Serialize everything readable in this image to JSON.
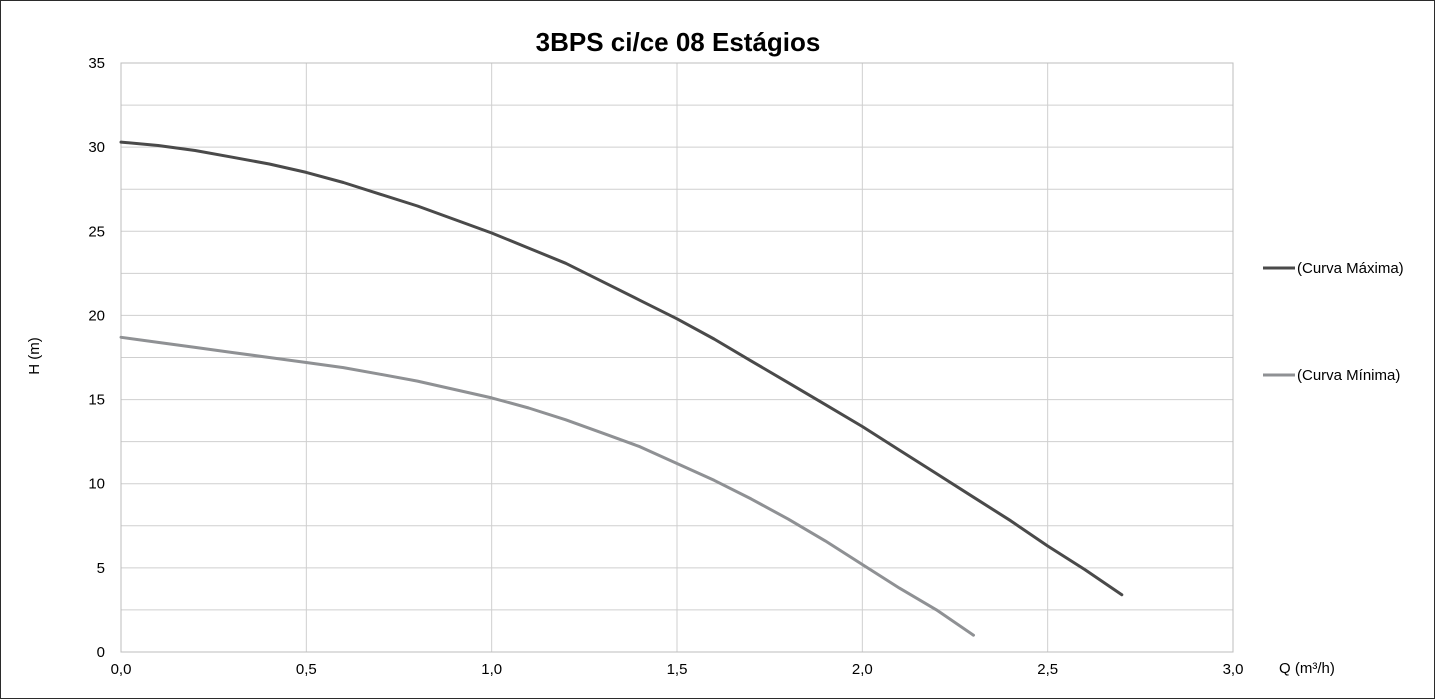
{
  "chart_data": {
    "type": "line",
    "title": "3BPS ci/ce 08 Estágios",
    "xlabel": "Q (m³/h)",
    "ylabel": "H (m)",
    "xlim": [
      0,
      3
    ],
    "ylim": [
      0,
      35
    ],
    "x_ticks": [
      "0,0",
      "0,5",
      "1,0",
      "1,5",
      "2,0",
      "2,5",
      "3,0"
    ],
    "y_ticks": [
      "0",
      "5",
      "10",
      "15",
      "20",
      "25",
      "30",
      "35"
    ],
    "grid": true,
    "legend_position": "right",
    "series": [
      {
        "name": "(Curva Máxima)",
        "color": "#4a4a4a",
        "x": [
          0.0,
          0.1,
          0.2,
          0.3,
          0.4,
          0.5,
          0.6,
          0.7,
          0.8,
          0.9,
          1.0,
          1.1,
          1.2,
          1.3,
          1.4,
          1.5,
          1.6,
          1.7,
          1.8,
          1.9,
          2.0,
          2.1,
          2.2,
          2.3,
          2.4,
          2.5,
          2.6,
          2.7
        ],
        "y": [
          30.3,
          30.1,
          29.8,
          29.4,
          29.0,
          28.5,
          27.9,
          27.2,
          26.5,
          25.7,
          24.9,
          24.0,
          23.1,
          22.0,
          20.9,
          19.8,
          18.6,
          17.3,
          16.0,
          14.7,
          13.4,
          12.0,
          10.6,
          9.2,
          7.8,
          6.3,
          4.9,
          3.4
        ]
      },
      {
        "name": "(Curva Mínima)",
        "color": "#8f9194",
        "x": [
          0.0,
          0.1,
          0.2,
          0.3,
          0.4,
          0.5,
          0.6,
          0.7,
          0.8,
          0.9,
          1.0,
          1.1,
          1.2,
          1.3,
          1.4,
          1.5,
          1.6,
          1.7,
          1.8,
          1.9,
          2.0,
          2.1,
          2.2,
          2.3
        ],
        "y": [
          18.7,
          18.4,
          18.1,
          17.8,
          17.5,
          17.2,
          16.9,
          16.5,
          16.1,
          15.6,
          15.1,
          14.5,
          13.8,
          13.0,
          12.2,
          11.2,
          10.2,
          9.1,
          7.9,
          6.6,
          5.2,
          3.8,
          2.5,
          1.0
        ]
      }
    ]
  }
}
